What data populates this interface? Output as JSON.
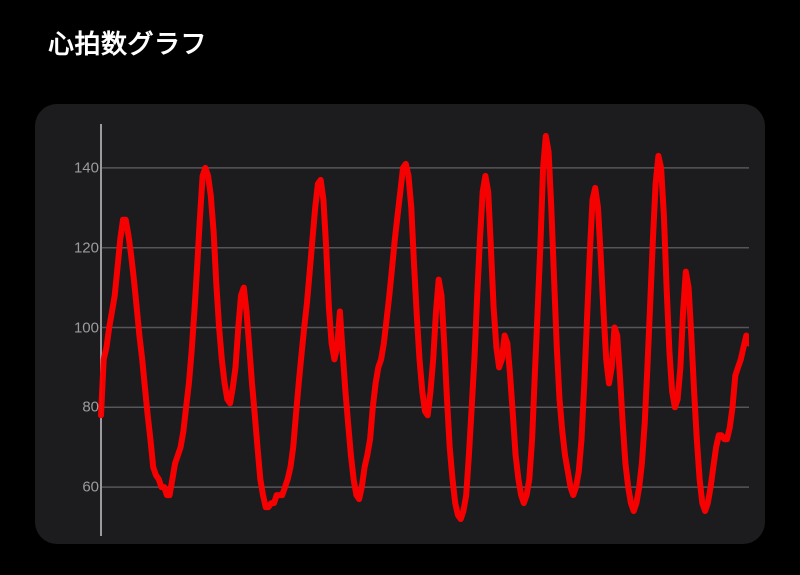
{
  "title": "心拍数グラフ",
  "title_fontsize": 26,
  "title_color": "#ffffff",
  "background_color": "#000000",
  "panel": {
    "background_color": "#1c1c1e",
    "border_radius": 22
  },
  "chart": {
    "type": "line",
    "ylim": [
      50,
      150
    ],
    "yticks": [
      60,
      80,
      100,
      120,
      140
    ],
    "ytick_color": "#9b9b9f",
    "ytick_fontsize": 15,
    "grid_color": "#55555a",
    "grid_width": 1.5,
    "axis_color": "#9b9b9f",
    "axis_width": 2,
    "line_color": "#ff0000",
    "line_width": 6,
    "line_opacity": 0.96,
    "xrange": [
      0,
      1000
    ],
    "values": [
      78,
      92,
      95,
      100,
      104,
      108,
      115,
      122,
      127,
      127,
      123,
      118,
      112,
      105,
      98,
      92,
      85,
      78,
      72,
      65,
      63,
      62,
      60,
      60,
      58,
      58,
      62,
      66,
      68,
      70,
      74,
      80,
      86,
      94,
      104,
      115,
      127,
      138,
      140,
      138,
      133,
      124,
      111,
      100,
      92,
      86,
      82,
      81,
      85,
      90,
      100,
      108,
      110,
      104,
      95,
      86,
      78,
      70,
      62,
      58,
      55,
      55,
      56,
      56,
      58,
      58,
      58,
      60,
      62,
      65,
      70,
      78,
      86,
      93,
      100,
      106,
      114,
      122,
      130,
      136,
      137,
      132,
      120,
      105,
      96,
      92,
      95,
      104,
      94,
      84,
      76,
      68,
      62,
      58,
      57,
      60,
      65,
      68,
      72,
      80,
      86,
      90,
      92,
      96,
      102,
      108,
      115,
      122,
      128,
      134,
      140,
      141,
      138,
      130,
      116,
      103,
      92,
      84,
      79,
      78,
      84,
      92,
      104,
      112,
      108,
      96,
      82,
      70,
      62,
      56,
      53,
      52,
      54,
      58,
      68,
      80,
      92,
      108,
      122,
      134,
      138,
      134,
      120,
      105,
      95,
      90,
      92,
      98,
      96,
      88,
      78,
      68,
      62,
      58,
      56,
      58,
      62,
      72,
      88,
      104,
      120,
      140,
      148,
      144,
      130,
      112,
      95,
      82,
      74,
      68,
      64,
      60,
      58,
      60,
      64,
      72,
      86,
      102,
      118,
      132,
      135,
      130,
      118,
      104,
      92,
      86,
      90,
      100,
      98,
      88,
      76,
      66,
      60,
      56,
      54,
      56,
      60,
      66,
      76,
      90,
      106,
      122,
      136,
      143,
      140,
      128,
      110,
      94,
      84,
      80,
      82,
      90,
      104,
      114,
      110,
      98,
      84,
      72,
      62,
      56,
      54,
      56,
      60,
      65,
      70,
      73,
      73,
      72,
      72,
      75,
      80,
      88,
      90,
      92,
      95,
      98,
      96
    ]
  }
}
